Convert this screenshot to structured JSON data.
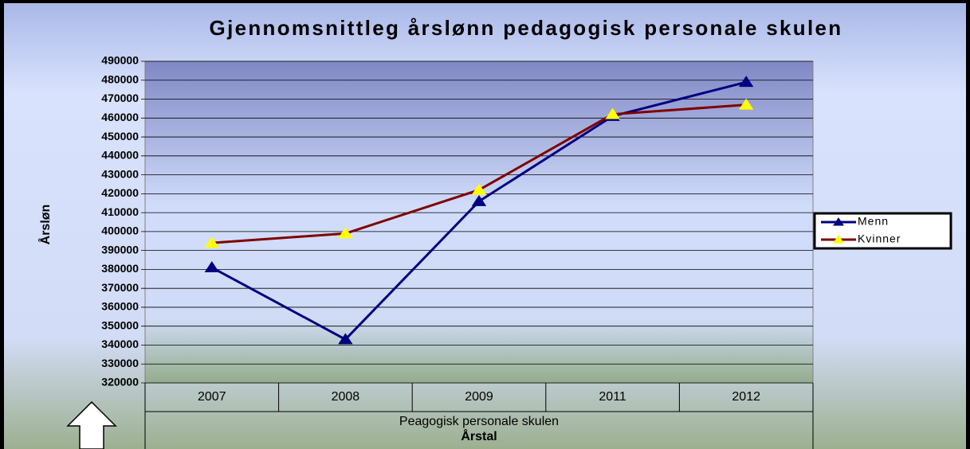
{
  "chart_data": {
    "type": "line",
    "title": "Gjennomsnittleg årslønn pedagogisk personale skulen",
    "y_label": "Årsløn",
    "x_group_label": "Peagogisk personale skulen",
    "x_label": "Årstal",
    "categories": [
      "2007",
      "2008",
      "2009",
      "2011",
      "2012"
    ],
    "series": [
      {
        "name": "Menn",
        "color": "#000080",
        "marker_color": "#000080",
        "values": [
          381000,
          343000,
          416000,
          461000,
          479000
        ]
      },
      {
        "name": "Kvinner",
        "color": "#800000",
        "marker_color": "#ffff00",
        "values": [
          394000,
          399000,
          422000,
          462000,
          467000
        ]
      }
    ],
    "ylim": [
      320000,
      490000
    ],
    "yticks": [
      320000,
      330000,
      340000,
      350000,
      360000,
      370000,
      380000,
      390000,
      400000,
      410000,
      420000,
      430000,
      440000,
      450000,
      460000,
      470000,
      480000,
      490000
    ],
    "grid": true,
    "legend": "right"
  }
}
